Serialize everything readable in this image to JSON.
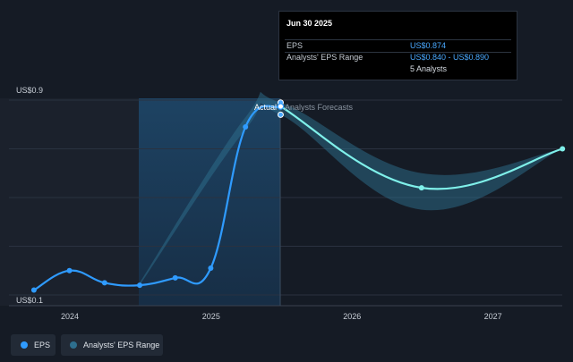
{
  "chart_data": {
    "type": "line",
    "ylim": [
      0.1,
      0.9
    ],
    "y_tick_labels": [
      "US$0.9",
      "US$0.1"
    ],
    "x_tick_labels": [
      "2024",
      "2025",
      "2026",
      "2027"
    ],
    "annotations": {
      "actual": "Actual",
      "forecast": "Analysts Forecasts"
    },
    "series": [
      {
        "name": "EPS",
        "kind": "actual",
        "color": "#2f9bff",
        "points": [
          {
            "x": "2023-09-30",
            "y": 0.12
          },
          {
            "x": "2023-12-31",
            "y": 0.2
          },
          {
            "x": "2024-03-31",
            "y": 0.15
          },
          {
            "x": "2024-06-30",
            "y": 0.14
          },
          {
            "x": "2024-09-30",
            "y": 0.17
          },
          {
            "x": "2024-12-31",
            "y": 0.21
          },
          {
            "x": "2025-03-31",
            "y": 0.79
          },
          {
            "x": "2025-06-30",
            "y": 0.874
          }
        ]
      },
      {
        "name": "EPS",
        "kind": "forecast",
        "color": "#7ff0ea",
        "points": [
          {
            "x": "2025-06-30",
            "y": 0.874
          },
          {
            "x": "2026-06-30",
            "y": 0.54
          },
          {
            "x": "2027-06-30",
            "y": 0.7
          }
        ]
      },
      {
        "name": "Analysts' EPS Range",
        "kind": "range",
        "color": "#2e6f8e",
        "low": [
          {
            "x": "2024-06-30",
            "y": 0.14
          },
          {
            "x": "2025-03-31",
            "y": 0.78
          },
          {
            "x": "2025-06-30",
            "y": 0.84
          },
          {
            "x": "2026-06-30",
            "y": 0.45
          },
          {
            "x": "2027-06-30",
            "y": 0.7
          }
        ],
        "high": [
          {
            "x": "2024-06-30",
            "y": 0.15
          },
          {
            "x": "2025-03-31",
            "y": 0.83
          },
          {
            "x": "2025-06-30",
            "y": 0.89
          },
          {
            "x": "2026-06-30",
            "y": 0.6
          },
          {
            "x": "2027-06-30",
            "y": 0.7
          }
        ]
      }
    ],
    "tooltip": {
      "date": "Jun 30 2025",
      "rows": [
        {
          "label": "EPS",
          "value": "US$0.874"
        },
        {
          "label": "Analysts' EPS Range",
          "value": "US$0.840 - US$0.890"
        },
        {
          "label": "",
          "value": "5 Analysts"
        }
      ]
    },
    "legend": [
      {
        "label": "EPS",
        "color": "#2f9bff"
      },
      {
        "label": "Analysts' EPS Range",
        "color": "#2e6f8e"
      }
    ],
    "grid": true
  }
}
